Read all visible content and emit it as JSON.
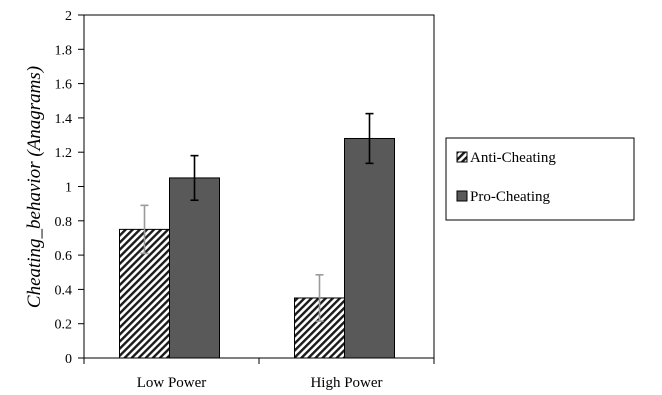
{
  "chart_data": {
    "type": "bar",
    "title": "",
    "xlabel": "",
    "ylabel": "Cheating_behavior (Anagrams)",
    "ylim": [
      0,
      2
    ],
    "yticks": [
      "0",
      "0.2",
      "0.4",
      "0.6",
      "0.8",
      "1",
      "1.2",
      "1.4",
      "1.6",
      "1.8",
      "2"
    ],
    "categories": [
      "Low Power",
      "High Power"
    ],
    "series": [
      {
        "name": "Anti-Cheating",
        "values": [
          0.75,
          0.35
        ],
        "error": [
          0.14,
          0.135
        ],
        "fill": "hatched",
        "color": "#ffffff"
      },
      {
        "name": "Pro-Cheating",
        "values": [
          1.05,
          1.28
        ],
        "error": [
          0.13,
          0.145
        ],
        "fill": "solid",
        "color": "#595959"
      }
    ],
    "grid": false,
    "legend_position": "right"
  }
}
